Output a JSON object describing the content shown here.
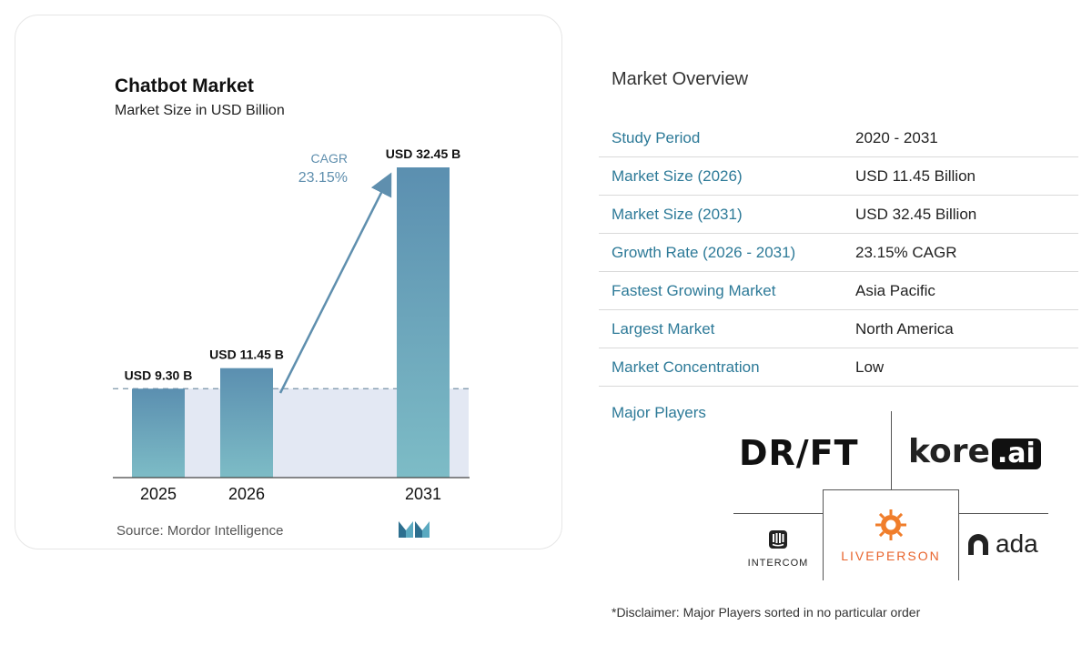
{
  "chart_data": {
    "type": "bar",
    "title": "Chatbot Market",
    "subtitle": "Market Size in USD Billion",
    "categories": [
      "2025",
      "2026",
      "2031"
    ],
    "values": [
      9.3,
      11.45,
      32.45
    ],
    "value_labels": [
      "USD 9.30 B",
      "USD 11.45 B",
      "USD 32.45 B"
    ],
    "cagr_label": "CAGR",
    "cagr_value": "23.15%",
    "ylim": [
      0,
      32.45
    ],
    "grid": false,
    "legend": "none",
    "source": "Source:  Mordor Intelligence",
    "colors": {
      "bar_top": "#5b8fb0",
      "bar_bottom": "#7dbcc6",
      "shade": "#e3e8f3",
      "arrow": "#5f8fae"
    }
  },
  "overview": {
    "title": "Market Overview",
    "rows": [
      {
        "label": "Study Period",
        "value": "2020 - 2031"
      },
      {
        "label": "Market Size (2026)",
        "value": "USD 11.45 Billion"
      },
      {
        "label": "Market Size (2031)",
        "value": "USD 32.45 Billion"
      },
      {
        "label": "Growth Rate (2026 - 2031)",
        "value": "23.15% CAGR"
      },
      {
        "label": "Fastest Growing Market",
        "value": "Asia Pacific"
      },
      {
        "label": "Largest Market",
        "value": "North America"
      },
      {
        "label": "Market Concentration",
        "value": "Low"
      }
    ]
  },
  "major_players": {
    "label": "Major Players",
    "logos": {
      "drift": "DR/FT",
      "kore_main": "kore",
      "kore_ai": ".ai",
      "intercom": "INTERCOM",
      "liveperson": "LIVEPERSON",
      "ada": "ada"
    }
  },
  "disclaimer": "*Disclaimer: Major Players sorted in no particular order",
  "accent_color": "#2d7a98"
}
